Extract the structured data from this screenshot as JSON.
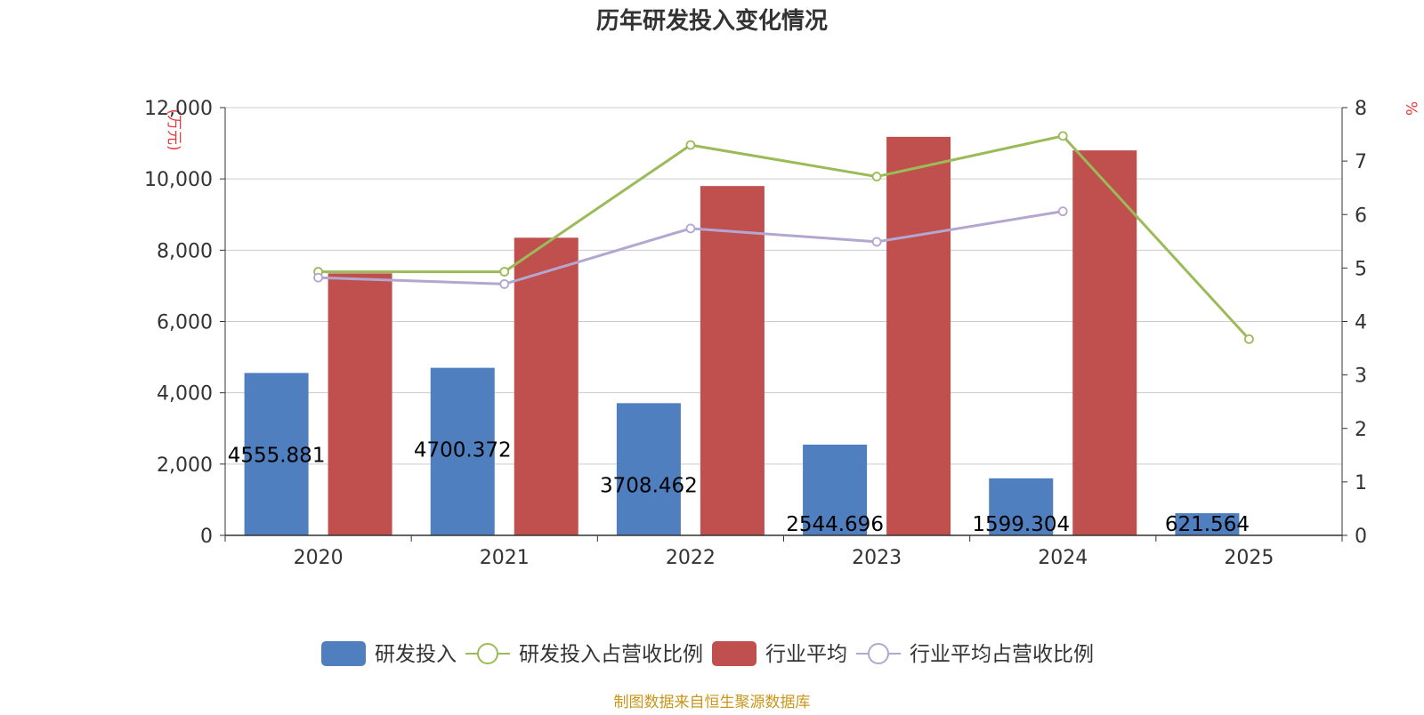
{
  "chart_data": {
    "type": "bar",
    "title": "历年研发投入变化情况",
    "source_note": "制图数据来自恒生聚源数据库",
    "left_unit": "(万元)",
    "right_unit": "%",
    "categories": [
      "2020",
      "2021",
      "2022",
      "2023",
      "2024",
      "2025"
    ],
    "left_axis": {
      "min": 0,
      "max": 12000,
      "ticks": [
        "0",
        "2,000",
        "4,000",
        "6,000",
        "8,000",
        "10,000",
        "12,000"
      ]
    },
    "right_axis": {
      "min": 0,
      "max": 8,
      "ticks": [
        "0",
        "1",
        "2",
        "3",
        "4",
        "5",
        "6",
        "7",
        "8"
      ]
    },
    "series": [
      {
        "name": "研发投入",
        "kind": "bar",
        "axis": "left",
        "color": "#4f7fbf",
        "values": [
          4555.881,
          4700.372,
          3708.462,
          2544.696,
          1599.304,
          621.564
        ],
        "labels": [
          "4555.881",
          "4700.372",
          "3708.462",
          "2544.696",
          "1599.304",
          "621.564"
        ]
      },
      {
        "name": "研发投入占营收比例",
        "kind": "line",
        "axis": "right",
        "color": "#9bbb59",
        "values": [
          4.93,
          4.93,
          7.3,
          6.71,
          7.47,
          3.67
        ]
      },
      {
        "name": "行业平均",
        "kind": "bar",
        "axis": "left",
        "color": "#c0504d",
        "values": [
          7350,
          8350,
          9800,
          11180,
          10800,
          null
        ]
      },
      {
        "name": "行业平均占营收比例",
        "kind": "line",
        "axis": "right",
        "color": "#b3a6d0",
        "values": [
          4.82,
          4.7,
          5.74,
          5.49,
          6.06,
          null
        ]
      }
    ],
    "grid": true,
    "legend_position": "bottom-center"
  }
}
